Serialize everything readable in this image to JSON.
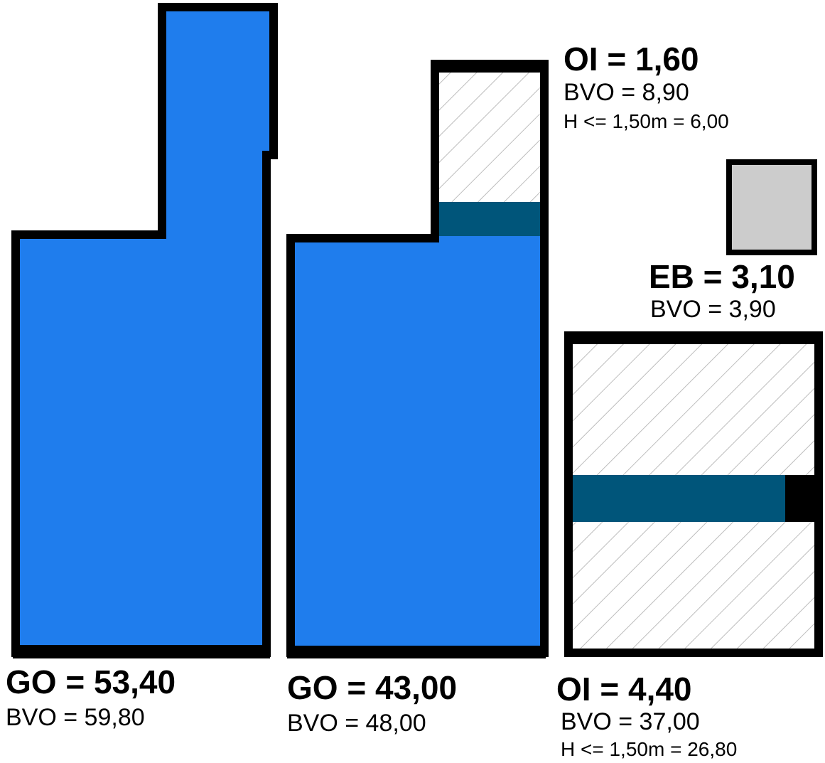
{
  "colors": {
    "go_fill": "#1f7ded",
    "oi_band": "#00557a",
    "eb_fill": "#cccccc",
    "outline": "#000000",
    "hatch": "#bdbdbd"
  },
  "unit_1": {
    "title": "GO = 53,40",
    "bvo": "BVO = 59,80"
  },
  "unit_2": {
    "title": "GO = 43,00",
    "bvo": "BVO = 48,00"
  },
  "unit_3": {
    "title": "OI = 1,60",
    "bvo": "BVO = 8,90",
    "h": "H <= 1,50m = 6,00"
  },
  "unit_4": {
    "title": "EB = 3,10",
    "bvo": "BVO = 3,90"
  },
  "unit_5": {
    "title": "OI = 4,40",
    "bvo": "BVO = 37,00",
    "h": "H <= 1,50m = 26,80"
  }
}
